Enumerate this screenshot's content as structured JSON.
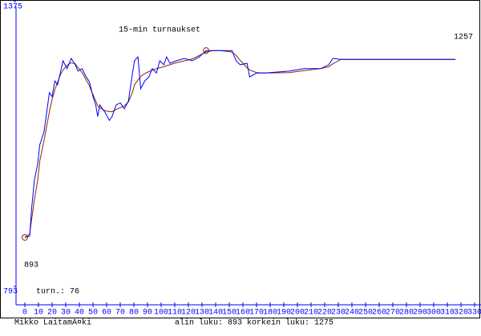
{
  "chart_data": {
    "type": "line",
    "title": "15-min turnaukset",
    "x": [
      0,
      3.5,
      5,
      7,
      9.4,
      11,
      14,
      16,
      18,
      20,
      22,
      24,
      26,
      28,
      31,
      34,
      37,
      39,
      42,
      45,
      47,
      48,
      50,
      52,
      53.5,
      55,
      57,
      59,
      62,
      64,
      67,
      70,
      73,
      76,
      79,
      80.5,
      83,
      85,
      88,
      91,
      93.5,
      96.5,
      99,
      102,
      104,
      106.5,
      111,
      117,
      123,
      128,
      133,
      138,
      143.5,
      152,
      155,
      158,
      163,
      165,
      170,
      176,
      194,
      205,
      217,
      223,
      226,
      232,
      316
    ],
    "series": [
      {
        "color": "#0000ff",
        "values": [
          893,
          896,
          953,
          1010,
          1043,
          1083,
          1108,
          1148,
          1189,
          1181,
          1213,
          1205,
          1229,
          1254,
          1238,
          1259,
          1246,
          1233,
          1238,
          1221,
          1213,
          1205,
          1181,
          1164,
          1140,
          1164,
          1156,
          1148,
          1132,
          1140,
          1164,
          1168,
          1156,
          1172,
          1229,
          1254,
          1262,
          1197,
          1213,
          1221,
          1238,
          1229,
          1254,
          1246,
          1262,
          1249,
          1254,
          1259,
          1254,
          1262,
          1275,
          1275,
          1275,
          1275,
          1254,
          1246,
          1249,
          1221,
          1229,
          1229,
          1233,
          1238,
          1238,
          1246,
          1259,
          1257,
          1257
        ]
      },
      {
        "color": "#8b2500",
        "values": [
          893,
          900,
          930,
          970,
          1010,
          1050,
          1090,
          1120,
          1150,
          1175,
          1195,
          1210,
          1225,
          1235,
          1245,
          1250,
          1248,
          1240,
          1230,
          1215,
          1205,
          1198,
          1185,
          1172,
          1162,
          1158,
          1155,
          1152,
          1150,
          1150,
          1155,
          1158,
          1162,
          1170,
          1190,
          1205,
          1215,
          1222,
          1228,
          1232,
          1235,
          1238,
          1240,
          1242,
          1244,
          1246,
          1250,
          1254,
          1258,
          1265,
          1272,
          1275,
          1275,
          1272,
          1265,
          1255,
          1240,
          1235,
          1230,
          1229,
          1230,
          1234,
          1238,
          1242,
          1248,
          1257,
          1257
        ]
      }
    ],
    "xlim": [
      0,
      330
    ],
    "xticks": [
      0,
      10,
      20,
      30,
      40,
      50,
      60,
      70,
      80,
      90,
      100,
      110,
      120,
      130,
      140,
      150,
      160,
      170,
      180,
      190,
      200,
      210,
      220,
      230,
      240,
      250,
      260,
      270,
      280,
      290,
      300,
      310,
      320,
      330
    ],
    "ylim": [
      793,
      1375
    ],
    "yticks": [
      793,
      1375
    ],
    "min_label": "893",
    "last_label": "1257",
    "count_label": "turn.: 76",
    "author": "Mikko LaitamÃ¤ki",
    "stats": "alin luku: 893  korkein luku: 1275"
  }
}
